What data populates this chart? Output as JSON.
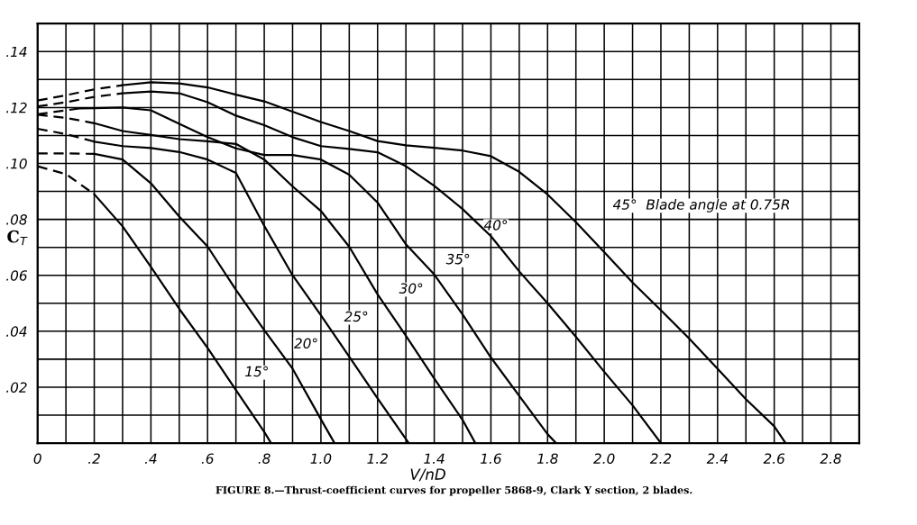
{
  "chart_data": {
    "type": "line",
    "xlabel": "V/nD",
    "ylabel": "C$_{T}$",
    "xlim": [
      0,
      2.9
    ],
    "ylim": [
      0,
      0.15
    ],
    "xticks": [
      {
        "value": 0,
        "label": "0"
      },
      {
        "value": 0.1,
        "label": null
      },
      {
        "value": 0.2,
        "label": ".2"
      },
      {
        "value": 0.3,
        "label": null
      },
      {
        "value": 0.4,
        "label": ".4"
      },
      {
        "value": 0.5,
        "label": null
      },
      {
        "value": 0.6,
        "label": ".6"
      },
      {
        "value": 0.7,
        "label": null
      },
      {
        "value": 0.8,
        "label": ".8"
      },
      {
        "value": 0.9,
        "label": null
      },
      {
        "value": 1.0,
        "label": "1.0"
      },
      {
        "value": 1.1,
        "label": null
      },
      {
        "value": 1.2,
        "label": "1.2"
      },
      {
        "value": 1.3,
        "label": null
      },
      {
        "value": 1.4,
        "label": "1.4"
      },
      {
        "value": 1.5,
        "label": null
      },
      {
        "value": 1.6,
        "label": "1.6"
      },
      {
        "value": 1.7,
        "label": null
      },
      {
        "value": 1.8,
        "label": "1.8"
      },
      {
        "value": 1.9,
        "label": null
      },
      {
        "value": 2.0,
        "label": "2.0"
      },
      {
        "value": 2.1,
        "label": null
      },
      {
        "value": 2.2,
        "label": "2.2"
      },
      {
        "value": 2.3,
        "label": null
      },
      {
        "value": 2.4,
        "label": "2.4"
      },
      {
        "value": 2.5,
        "label": null
      },
      {
        "value": 2.6,
        "label": "2.6"
      },
      {
        "value": 2.7,
        "label": null
      },
      {
        "value": 2.8,
        "label": "2.8"
      }
    ],
    "yticks": [
      {
        "value": 0.01,
        "label": null
      },
      {
        "value": 0.02,
        "label": ".02"
      },
      {
        "value": 0.03,
        "label": null
      },
      {
        "value": 0.04,
        "label": ".04"
      },
      {
        "value": 0.05,
        "label": null
      },
      {
        "value": 0.06,
        "label": ".06"
      },
      {
        "value": 0.07,
        "label": null
      },
      {
        "value": 0.08,
        "label": ".08"
      },
      {
        "value": 0.09,
        "label": null
      },
      {
        "value": 0.1,
        "label": ".10"
      },
      {
        "value": 0.11,
        "label": null
      },
      {
        "value": 0.12,
        "label": ".12"
      },
      {
        "value": 0.13,
        "label": null
      },
      {
        "value": 0.14,
        "label": ".14"
      }
    ],
    "grid": true,
    "marker": "none",
    "series": [
      {
        "color": "#000000",
        "line_style": "dashed",
        "x": [
          0,
          0.1,
          0.2,
          0.3
        ],
        "values": [
          0.1225,
          0.1244,
          0.1265,
          0.128
        ]
      },
      {
        "color": "#000000",
        "line_style": "solid",
        "x": [
          0.3,
          0.4,
          0.5,
          0.6,
          0.7,
          0.8,
          0.9,
          1.0,
          1.1,
          1.2,
          1.3,
          1.4,
          1.5,
          1.6,
          1.7,
          1.8,
          1.9,
          2.0,
          2.1,
          2.2,
          2.3,
          2.4,
          2.5,
          2.6,
          2.64
        ],
        "values": [
          0.128,
          0.129,
          0.1286,
          0.1272,
          0.1246,
          0.1222,
          0.1185,
          0.1148,
          0.1116,
          0.108,
          0.1065,
          0.1056,
          0.1046,
          0.1026,
          0.097,
          0.0889,
          0.079,
          0.0683,
          0.0574,
          0.0475,
          0.0374,
          0.0266,
          0.0157,
          0.006,
          0
        ]
      },
      {
        "color": "#000000",
        "line_style": "dashed",
        "x": [
          0,
          0.1,
          0.2,
          0.3
        ],
        "values": [
          0.1204,
          0.1219,
          0.1238,
          0.1251
        ]
      },
      {
        "color": "#000000",
        "line_style": "solid",
        "x": [
          0.3,
          0.4,
          0.5,
          0.6,
          0.7,
          0.8,
          0.9,
          1.0,
          1.1,
          1.2,
          1.3,
          1.4,
          1.5,
          1.6,
          1.7,
          1.8,
          1.9,
          2.0,
          2.1,
          2.2
        ],
        "values": [
          0.1251,
          0.1257,
          0.1251,
          0.1219,
          0.1171,
          0.1137,
          0.1094,
          0.1062,
          0.1052,
          0.104,
          0.099,
          0.092,
          0.0837,
          0.074,
          0.0614,
          0.05,
          0.038,
          0.0255,
          0.0135,
          0
        ]
      },
      {
        "color": "#000000",
        "line_style": "dashed",
        "x": [
          0,
          0.1,
          0.15
        ],
        "values": [
          0.1176,
          0.119,
          0.1197
        ]
      },
      {
        "color": "#000000",
        "line_style": "solid",
        "x": [
          0.15,
          0.2,
          0.3,
          0.4,
          0.5,
          0.6,
          0.7,
          0.8,
          0.9,
          1.0,
          1.1,
          1.2,
          1.3,
          1.4,
          1.5,
          1.6,
          1.7,
          1.8,
          1.83
        ],
        "values": [
          0.1197,
          0.1198,
          0.12,
          0.119,
          0.1142,
          0.1094,
          0.1054,
          0.103,
          0.103,
          0.1014,
          0.096,
          0.086,
          0.0711,
          0.0603,
          0.046,
          0.0306,
          0.0169,
          0.0032,
          0
        ]
      },
      {
        "color": "#000000",
        "line_style": "dashed",
        "x": [
          0,
          0.1,
          0.2
        ],
        "values": [
          0.1174,
          0.1163,
          0.1144
        ]
      },
      {
        "color": "#000000",
        "line_style": "solid",
        "x": [
          0.2,
          0.3,
          0.4,
          0.5,
          0.6,
          0.7,
          0.8,
          0.9,
          1.0,
          1.1,
          1.2,
          1.3,
          1.4,
          1.5,
          1.545
        ],
        "values": [
          0.1144,
          0.1116,
          0.1102,
          0.1087,
          0.1079,
          0.107,
          0.1014,
          0.0918,
          0.083,
          0.0702,
          0.0532,
          0.0384,
          0.0231,
          0.0083,
          0
        ]
      },
      {
        "color": "#000000",
        "line_style": "dashed",
        "x": [
          0,
          0.1,
          0.2
        ],
        "values": [
          0.1124,
          0.1105,
          0.1078
        ]
      },
      {
        "color": "#000000",
        "line_style": "solid",
        "x": [
          0.2,
          0.3,
          0.4,
          0.5,
          0.6,
          0.7,
          0.8,
          0.9,
          1.0,
          1.1,
          1.2,
          1.31
        ],
        "values": [
          0.1078,
          0.1062,
          0.1055,
          0.1041,
          0.1014,
          0.0966,
          0.0777,
          0.06,
          0.0457,
          0.0309,
          0.016,
          0
        ]
      },
      {
        "color": "#000000",
        "line_style": "dashed",
        "x": [
          0,
          0.1,
          0.2
        ],
        "values": [
          0.1036,
          0.1036,
          0.1034
        ]
      },
      {
        "color": "#000000",
        "line_style": "solid",
        "x": [
          0.2,
          0.3,
          0.4,
          0.5,
          0.6,
          0.7,
          0.8,
          0.9,
          1.0,
          1.048
        ],
        "values": [
          0.1034,
          0.1014,
          0.0929,
          0.081,
          0.0703,
          0.0548,
          0.0404,
          0.0266,
          0.0085,
          0
        ]
      },
      {
        "color": "#000000",
        "line_style": "dashed",
        "x": [
          0,
          0.1,
          0.2
        ],
        "values": [
          0.099,
          0.0962,
          0.089
        ]
      },
      {
        "color": "#000000",
        "line_style": "solid",
        "x": [
          0.2,
          0.3,
          0.4,
          0.5,
          0.6,
          0.7,
          0.8,
          0.824
        ],
        "values": [
          0.089,
          0.0775,
          0.063,
          0.048,
          0.034,
          0.019,
          0.004,
          0
        ]
      }
    ],
    "annotations": [
      "15°",
      "20°",
      "25°",
      "30°",
      "35°",
      "40°",
      "45°  Blade angle at 0.75R",
      "FIGURE 8.—Thrust-coefficient curves for propeller 5868-9, Clark Y section, 2 blades."
    ]
  }
}
